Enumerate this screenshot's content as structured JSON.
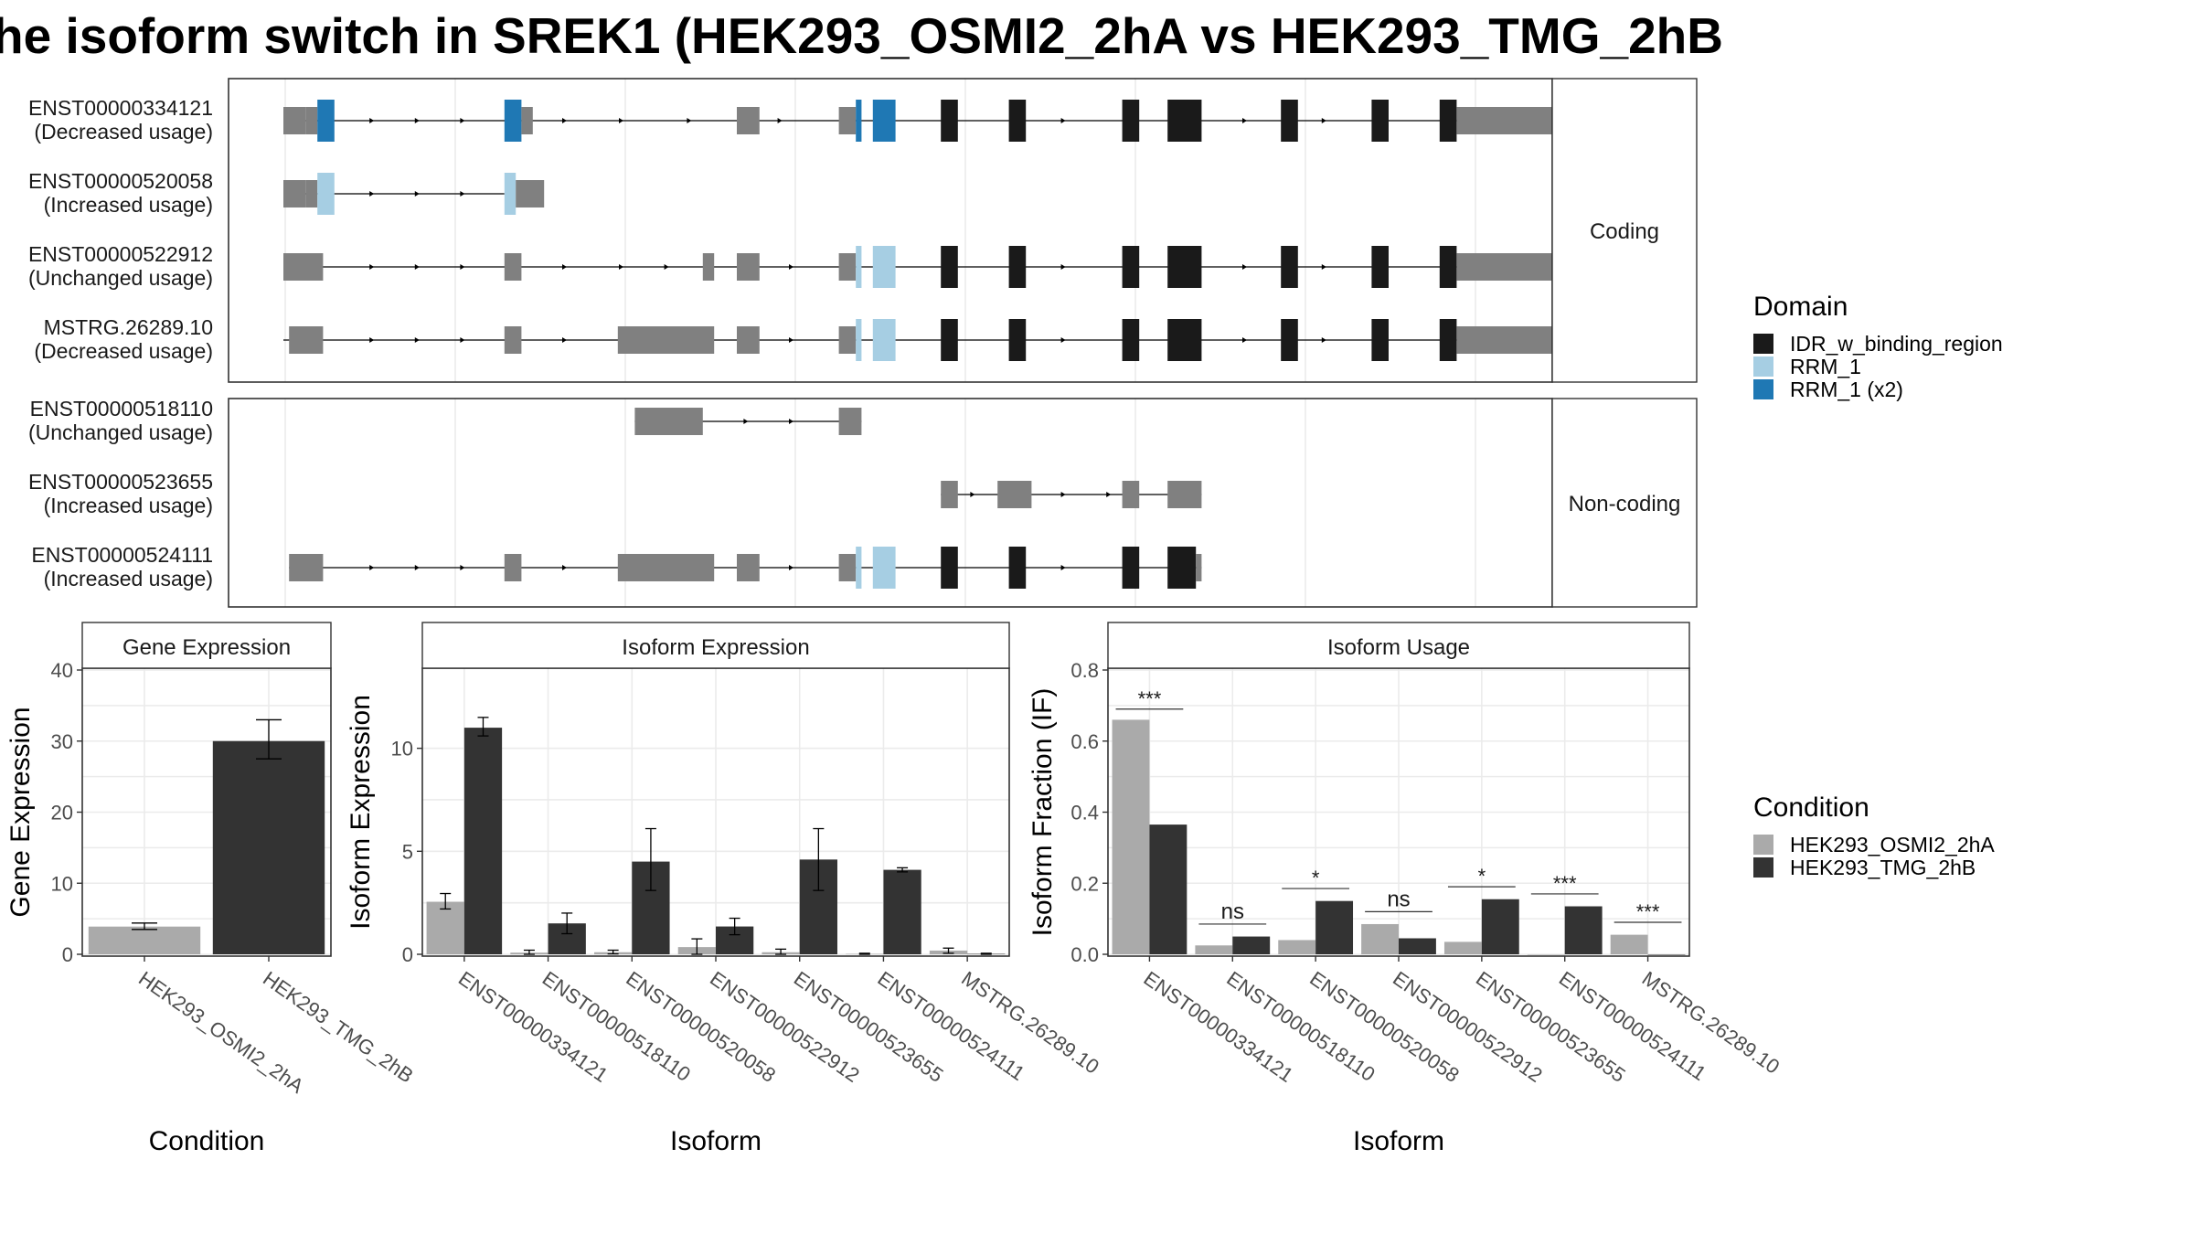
{
  "title": "he isoform switch in SREK1 (HEK293_OSMI2_2hA vs HEK293_TMG_2hB",
  "colors": {
    "utr": "#808080",
    "idr": "#1a1a1a",
    "rrm": "#a6cee3",
    "rrm2": "#1f78b4",
    "cond1": "#aaaaaa",
    "cond2": "#333333"
  },
  "transcripts": {
    "groups": [
      {
        "label": "Coding",
        "rows": [
          {
            "id": "ENST00000334121",
            "usage": "(Decreased usage)",
            "start": 1,
            "end": 116,
            "segments": [
              [
                1,
                3,
                "utr"
              ],
              [
                3,
                4,
                "utr"
              ],
              [
                4,
                5.5,
                "rrm2"
              ],
              [
                20.5,
                22,
                "rrm2"
              ],
              [
                22,
                23,
                "utr"
              ],
              [
                41,
                43,
                "utr"
              ],
              [
                50,
                51.5,
                "utr"
              ],
              [
                51.5,
                52,
                "rrm2"
              ],
              [
                53,
                55,
                "rrm2"
              ],
              [
                59,
                60.5,
                "idr"
              ],
              [
                65,
                66.5,
                "idr"
              ],
              [
                75,
                76.5,
                "idr"
              ],
              [
                79,
                82,
                "idr"
              ],
              [
                89,
                90.5,
                "idr"
              ],
              [
                97,
                98.5,
                "idr"
              ],
              [
                103,
                104.5,
                "idr"
              ],
              [
                104.5,
                113,
                "utr"
              ]
            ],
            "arrows": [
              9,
              13,
              17,
              26,
              31,
              37,
              45,
              54,
              70,
              86,
              93
            ]
          },
          {
            "id": "ENST00000520058",
            "usage": "(Increased usage)",
            "start": 1,
            "end": 20.5,
            "segments": [
              [
                1,
                3,
                "utr"
              ],
              [
                3,
                4,
                "utr"
              ],
              [
                4,
                5.5,
                "rrm"
              ],
              [
                20.5,
                21.5,
                "rrm"
              ],
              [
                21.5,
                24,
                "utr"
              ]
            ],
            "arrows": [
              9,
              13,
              17
            ]
          },
          {
            "id": "ENST00000522912",
            "usage": "(Unchanged usage)",
            "start": 1,
            "end": 116,
            "segments": [
              [
                1,
                4.5,
                "utr"
              ],
              [
                20.5,
                22,
                "utr"
              ],
              [
                38,
                39,
                "utr"
              ],
              [
                41,
                43,
                "utr"
              ],
              [
                50,
                51.5,
                "utr"
              ],
              [
                51.5,
                52,
                "rrm"
              ],
              [
                53,
                55,
                "rrm"
              ],
              [
                59,
                60.5,
                "idr"
              ],
              [
                65,
                66.5,
                "idr"
              ],
              [
                75,
                76.5,
                "idr"
              ],
              [
                79,
                82,
                "idr"
              ],
              [
                89,
                90.5,
                "idr"
              ],
              [
                97,
                98.5,
                "idr"
              ],
              [
                103,
                104.5,
                "idr"
              ],
              [
                104.5,
                113,
                "utr"
              ]
            ],
            "arrows": [
              9,
              13,
              17,
              26,
              31,
              35,
              46,
              70,
              86,
              93
            ]
          },
          {
            "id": "MSTRG.26289.10",
            "usage": "(Decreased usage)",
            "start": 1,
            "end": 116,
            "segments": [
              [
                1.5,
                4.5,
                "utr"
              ],
              [
                20.5,
                22,
                "utr"
              ],
              [
                30.5,
                39,
                "utr"
              ],
              [
                41,
                43,
                "utr"
              ],
              [
                50,
                51.5,
                "utr"
              ],
              [
                51.5,
                52,
                "rrm"
              ],
              [
                53,
                55,
                "rrm"
              ],
              [
                59,
                60.5,
                "idr"
              ],
              [
                65,
                66.5,
                "idr"
              ],
              [
                75,
                76.5,
                "idr"
              ],
              [
                79,
                82,
                "idr"
              ],
              [
                89,
                90.5,
                "idr"
              ],
              [
                97,
                98.5,
                "idr"
              ],
              [
                103,
                104.5,
                "idr"
              ],
              [
                104.5,
                113,
                "utr"
              ]
            ],
            "arrows": [
              9,
              13,
              17,
              26,
              46,
              70,
              86,
              93
            ]
          }
        ]
      },
      {
        "label": "Non-coding",
        "rows": [
          {
            "id": "ENST00000518110",
            "usage": "(Unchanged usage)",
            "start": 32,
            "end": 52,
            "segments": [
              [
                32,
                38,
                "utr"
              ],
              [
                50,
                52,
                "utr"
              ]
            ],
            "arrows": [
              42,
              46
            ]
          },
          {
            "id": "ENST00000523655",
            "usage": "(Increased usage)",
            "start": 59,
            "end": 82,
            "segments": [
              [
                59,
                60.5,
                "utr"
              ],
              [
                64,
                67,
                "utr"
              ],
              [
                75,
                76.5,
                "utr"
              ],
              [
                79,
                82,
                "utr"
              ]
            ],
            "arrows": [
              62,
              70,
              74
            ]
          },
          {
            "id": "ENST00000524111",
            "usage": "(Increased usage)",
            "start": 1.5,
            "end": 82,
            "segments": [
              [
                1.5,
                4.5,
                "utr"
              ],
              [
                20.5,
                22,
                "utr"
              ],
              [
                30.5,
                39,
                "utr"
              ],
              [
                41,
                43,
                "utr"
              ],
              [
                50,
                51.5,
                "utr"
              ],
              [
                51.5,
                52,
                "rrm"
              ],
              [
                53,
                55,
                "rrm"
              ],
              [
                59,
                60.5,
                "idr"
              ],
              [
                65,
                66.5,
                "idr"
              ],
              [
                75,
                76.5,
                "idr"
              ],
              [
                79,
                81.5,
                "idr"
              ],
              [
                81.5,
                82,
                "utr"
              ]
            ],
            "arrows": [
              9,
              13,
              17,
              26,
              46,
              70
            ]
          }
        ]
      }
    ]
  },
  "domain_legend": {
    "title": "Domain",
    "entries": [
      {
        "label": "IDR_w_binding_region",
        "color": "#1a1a1a"
      },
      {
        "label": "RRM_1",
        "color": "#a6cee3"
      },
      {
        "label": "RRM_1 (x2)",
        "color": "#1f78b4"
      }
    ]
  },
  "condition_legend": {
    "title": "Condition",
    "entries": [
      {
        "label": "HEK293_OSMI2_2hA",
        "color": "#aaaaaa"
      },
      {
        "label": "HEK293_TMG_2hB",
        "color": "#333333"
      }
    ]
  },
  "chart_data": [
    {
      "type": "bar",
      "title": "Gene Expression",
      "xlabel": "Condition",
      "ylabel": "Gene Expression",
      "ylim": [
        0,
        40
      ],
      "yticks": [
        0,
        10,
        20,
        30,
        40
      ],
      "categories": [
        "HEK293_OSMI2_2hA",
        "HEK293_TMG_2hB"
      ],
      "values": [
        3.9,
        30.0
      ],
      "errors": [
        [
          3.5,
          4.4
        ],
        [
          27.5,
          33.0
        ]
      ]
    },
    {
      "type": "bar",
      "title": "Isoform Expression",
      "xlabel": "Isoform",
      "ylabel": "Isoform Expression",
      "ylim": [
        0,
        13.8
      ],
      "yticks": [
        0,
        5,
        10
      ],
      "categories": [
        "ENST00000334121",
        "ENST00000518110",
        "ENST00000520058",
        "ENST00000522912",
        "ENST00000523655",
        "ENST00000524111",
        "MSTRG.26289.10"
      ],
      "series": [
        {
          "name": "HEK293_OSMI2_2hA",
          "values": [
            2.55,
            0.08,
            0.1,
            0.35,
            0.1,
            0.02,
            0.18
          ],
          "errors": [
            [
              2.2,
              2.95
            ],
            [
              0.0,
              0.2
            ],
            [
              0.02,
              0.2
            ],
            [
              0.0,
              0.75
            ],
            [
              0.0,
              0.25
            ],
            [
              0.0,
              0.05
            ],
            [
              0.05,
              0.3
            ]
          ]
        },
        {
          "name": "HEK293_TMG_2hB",
          "values": [
            11.0,
            1.5,
            4.5,
            1.35,
            4.6,
            4.1,
            0.02
          ],
          "errors": [
            [
              10.6,
              11.5
            ],
            [
              1.0,
              2.0
            ],
            [
              3.1,
              6.1
            ],
            [
              0.95,
              1.75
            ],
            [
              3.1,
              6.1
            ],
            [
              4.0,
              4.2
            ],
            [
              0.0,
              0.05
            ]
          ]
        }
      ]
    },
    {
      "type": "bar",
      "title": "Isoform Usage",
      "xlabel": "Isoform",
      "ylabel": "Isoform Fraction (IF)",
      "ylim": [
        0,
        0.8
      ],
      "yticks": [
        0.0,
        0.2,
        0.4,
        0.6,
        0.8
      ],
      "categories": [
        "ENST00000334121",
        "ENST00000518110",
        "ENST00000520058",
        "ENST00000522912",
        "ENST00000523655",
        "ENST00000524111",
        "MSTRG.26289.10"
      ],
      "series": [
        {
          "name": "HEK293_OSMI2_2hA",
          "values": [
            0.66,
            0.025,
            0.04,
            0.085,
            0.035,
            0.0,
            0.055
          ]
        },
        {
          "name": "HEK293_TMG_2hB",
          "values": [
            0.365,
            0.05,
            0.15,
            0.045,
            0.155,
            0.135,
            0.0
          ]
        }
      ],
      "significance": [
        {
          "label": "***",
          "y": 0.69
        },
        {
          "label": "ns",
          "y": 0.085
        },
        {
          "label": "*",
          "y": 0.185
        },
        {
          "label": "ns",
          "y": 0.12
        },
        {
          "label": "*",
          "y": 0.19
        },
        {
          "label": "***",
          "y": 0.17
        },
        {
          "label": "***",
          "y": 0.09
        }
      ]
    }
  ]
}
